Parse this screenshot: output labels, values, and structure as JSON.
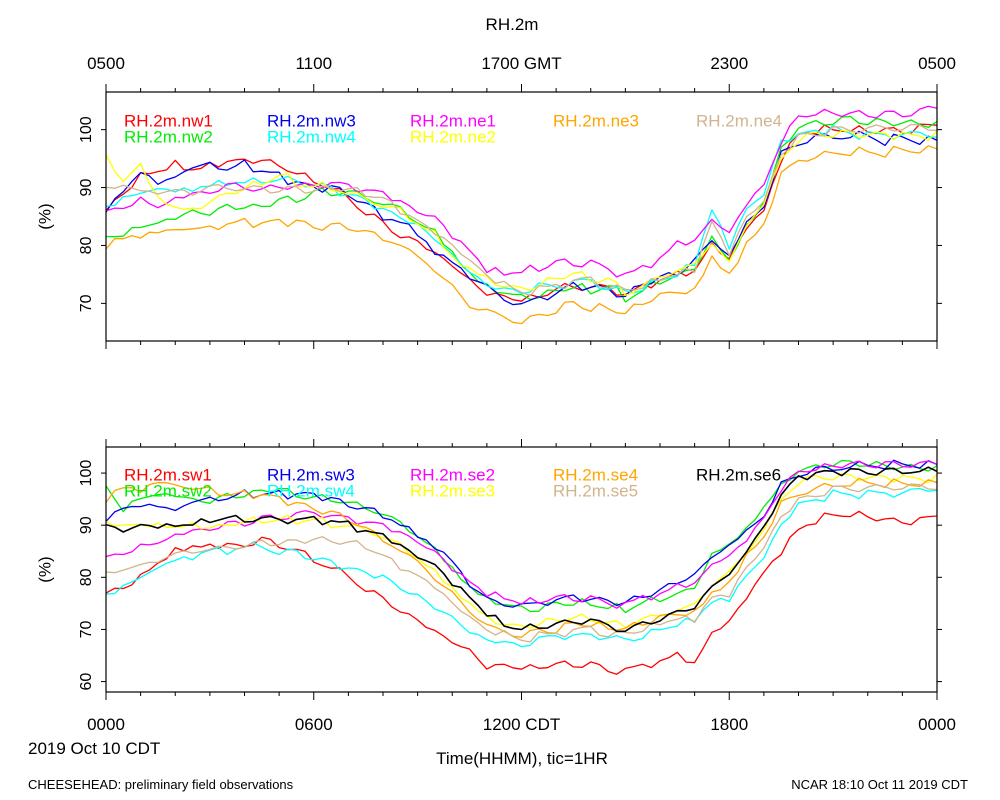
{
  "title": "RH.2m",
  "top_axis": {
    "ticks": [
      "0500",
      "1100",
      "1700 GMT",
      "2300",
      "0500"
    ],
    "hours": [
      0,
      6,
      12,
      18,
      24
    ]
  },
  "bottom_axis": {
    "ticks": [
      "0000",
      "0600",
      "1200 CDT",
      "1800",
      "0000"
    ],
    "hours": [
      0,
      6,
      12,
      18,
      24
    ]
  },
  "date_label": "2019 Oct 10 CDT",
  "xlabel": "Time(HHMM), tic=1HR",
  "footer_left": "CHEESEHEAD: preliminary field observations",
  "footer_right": "NCAR 18:10 Oct 11 2019 CDT",
  "chart_data": [
    {
      "type": "line",
      "panel": "top",
      "ylabel": "(%)",
      "xlim": [
        0,
        24
      ],
      "ylim": [
        63.5,
        106.5
      ],
      "yticks": [
        70,
        80,
        90,
        100
      ],
      "x_hours": [
        0,
        0.5,
        1,
        1.5,
        2,
        2.5,
        3,
        3.5,
        4,
        4.5,
        5,
        5.5,
        6,
        6.5,
        7,
        7.5,
        8,
        8.5,
        9,
        9.5,
        10,
        10.5,
        11,
        11.5,
        12,
        12.5,
        13,
        13.5,
        14,
        14.5,
        15,
        15.5,
        16,
        16.5,
        17,
        17.5,
        18,
        18.5,
        19,
        19.5,
        20,
        20.5,
        21,
        21.5,
        22,
        22.5,
        23,
        23.5,
        24
      ],
      "series": [
        {
          "name": "RH.2m.nw1",
          "color": "#ff0000",
          "values": [
            86,
            89,
            92,
            93,
            94,
            93,
            94,
            94,
            95,
            94,
            94,
            92,
            91,
            90,
            88,
            86,
            84,
            82,
            81,
            79,
            77,
            74,
            72,
            71,
            70.5,
            71,
            72,
            73,
            72,
            73,
            71,
            73,
            74,
            75,
            76,
            80,
            78,
            83,
            86,
            95,
            99,
            100,
            100,
            100,
            100,
            100,
            100,
            100.5,
            101
          ]
        },
        {
          "name": "RH.2m.nw2",
          "color": "#00ee00",
          "values": [
            81,
            82,
            83,
            84,
            85,
            86,
            86,
            87,
            87,
            87,
            88,
            88,
            89,
            89,
            89,
            88,
            87,
            86,
            84,
            82,
            79,
            75,
            73,
            72,
            71,
            71.5,
            72,
            73,
            72,
            73,
            71,
            72,
            74,
            75,
            76,
            82,
            77,
            84,
            87,
            97,
            100,
            101,
            101,
            101.5,
            101,
            101,
            101,
            101,
            101
          ]
        },
        {
          "name": "RH.2m.nw3",
          "color": "#0000ee",
          "values": [
            86,
            89,
            93,
            90,
            92,
            93,
            94,
            93,
            94,
            93,
            92,
            91,
            90,
            90,
            89,
            87,
            85,
            84,
            82,
            79,
            77,
            75,
            73,
            71,
            70,
            71,
            72,
            73,
            73,
            72,
            71,
            73,
            74,
            75,
            77,
            81,
            78,
            84,
            87,
            96,
            98,
            99,
            99,
            99,
            99,
            98,
            98.5,
            98,
            98
          ]
        },
        {
          "name": "RH.2m.nw4",
          "color": "#00ffff",
          "values": [
            87,
            88,
            89,
            90,
            89,
            90,
            90,
            91,
            91,
            91,
            92,
            91,
            91,
            90,
            89,
            88,
            86,
            85,
            83,
            81,
            78,
            75,
            73,
            72,
            72,
            73,
            73,
            74,
            74,
            73,
            72,
            73,
            74,
            75,
            77,
            86,
            80,
            86,
            89,
            98,
            99,
            100,
            100,
            99.5,
            99,
            99,
            99,
            99,
            99
          ]
        },
        {
          "name": "RH.2m.ne1",
          "color": "#ff00ff",
          "values": [
            86,
            87,
            88,
            87,
            88,
            89,
            89,
            90,
            90,
            89,
            90,
            90,
            90,
            91,
            90,
            90,
            89,
            88,
            86,
            85,
            82,
            79,
            76,
            75,
            75.5,
            76,
            77,
            77,
            77,
            76,
            75,
            76,
            78,
            80,
            81,
            84,
            82,
            87,
            90,
            98,
            102,
            103,
            103,
            103,
            103,
            103,
            103,
            103.5,
            104
          ]
        },
        {
          "name": "RH.2m.ne2",
          "color": "#ffff00",
          "values": [
            95,
            91,
            94,
            88,
            87,
            86,
            88,
            89,
            90,
            91,
            92,
            91,
            90,
            90,
            89,
            88,
            87,
            86,
            84,
            82,
            78,
            76,
            74,
            73,
            72,
            73,
            74,
            75,
            74,
            74,
            72,
            73,
            75,
            76,
            77,
            81,
            77,
            84,
            87,
            95,
            98,
            99,
            99,
            99,
            99,
            99,
            99,
            99,
            99
          ]
        },
        {
          "name": "RH.2m.ne3",
          "color": "#ffa500",
          "values": [
            80,
            81,
            82,
            82,
            83,
            83,
            83,
            84,
            84,
            84,
            84,
            84,
            83,
            83,
            83,
            82,
            81,
            80,
            78,
            76,
            73,
            70,
            69,
            68,
            67,
            68,
            69,
            70,
            69,
            69,
            68,
            70,
            71,
            72,
            72,
            78,
            75,
            80,
            84,
            92,
            95,
            95,
            96,
            96,
            96,
            96,
            96.5,
            96.5,
            97
          ]
        },
        {
          "name": "RH.2m.ne4",
          "color": "#d2b48c",
          "values": [
            90,
            90,
            89,
            89,
            89,
            89,
            90,
            90,
            90,
            90,
            90,
            90,
            90,
            90,
            90,
            89,
            88,
            86,
            84,
            82,
            80,
            77,
            75,
            73,
            72,
            72.5,
            73,
            74,
            74,
            73,
            72,
            73,
            74,
            75,
            76,
            84,
            79,
            85,
            88,
            96,
            99,
            99.5,
            100,
            100,
            100,
            100,
            100,
            100,
            100
          ]
        }
      ]
    },
    {
      "type": "line",
      "panel": "bottom",
      "ylabel": "(%)",
      "xlim": [
        0,
        24
      ],
      "ylim": [
        58,
        105
      ],
      "yticks": [
        60,
        70,
        80,
        90,
        100
      ],
      "x_hours": [
        0,
        0.5,
        1,
        1.5,
        2,
        2.5,
        3,
        3.5,
        4,
        4.5,
        5,
        5.5,
        6,
        6.5,
        7,
        7.5,
        8,
        8.5,
        9,
        9.5,
        10,
        10.5,
        11,
        11.5,
        12,
        12.5,
        13,
        13.5,
        14,
        14.5,
        15,
        15.5,
        16,
        16.5,
        17,
        17.5,
        18,
        18.5,
        19,
        19.5,
        20,
        20.5,
        21,
        21.5,
        22,
        22.5,
        23,
        23.5,
        24
      ],
      "series": [
        {
          "name": "RH.2m.sw1",
          "color": "#ff0000",
          "values": [
            77,
            78,
            80,
            83,
            85,
            86,
            86,
            86,
            86,
            87,
            86,
            85,
            83,
            82,
            80,
            78,
            76,
            74,
            72,
            70,
            68,
            66,
            63,
            63,
            62.5,
            62.5,
            63,
            63,
            63,
            62,
            62,
            63,
            64,
            65,
            64,
            69,
            72,
            76,
            81,
            85,
            89,
            91,
            92,
            92,
            92,
            91,
            91,
            91,
            92
          ]
        },
        {
          "name": "RH.2m.sw2",
          "color": "#00ee00",
          "values": [
            97,
            93,
            95,
            96,
            96,
            95,
            95,
            96,
            96,
            97,
            97,
            96,
            95,
            95,
            94,
            93,
            92,
            90,
            88,
            85,
            82,
            78,
            76,
            75,
            74,
            74,
            75,
            75,
            75,
            74,
            74,
            75,
            76,
            77,
            78,
            85,
            86,
            90,
            93,
            98,
            100,
            101,
            101.5,
            101.5,
            101.5,
            101,
            101,
            101,
            101
          ]
        },
        {
          "name": "RH.2m.sw3",
          "color": "#0000ee",
          "values": [
            91,
            93,
            94,
            93,
            93,
            94,
            95,
            95,
            96,
            96,
            96,
            96,
            96,
            95,
            94,
            93,
            92,
            90,
            88,
            86,
            83,
            79,
            76,
            75,
            75,
            75,
            76,
            76,
            76,
            75,
            75,
            76,
            77,
            79,
            80,
            84,
            86,
            89,
            92,
            98,
            100,
            101,
            101,
            101.5,
            101.5,
            101.5,
            101.5,
            101.5,
            101.5
          ]
        },
        {
          "name": "RH.2m.sw4",
          "color": "#00ffff",
          "values": [
            77,
            78,
            80,
            82,
            83,
            84,
            85,
            85,
            86,
            86,
            85,
            85,
            84,
            83,
            82,
            81,
            80,
            78,
            76,
            74,
            72,
            69,
            68,
            67,
            67,
            68,
            69,
            69,
            69,
            69,
            68,
            69,
            70,
            71,
            72,
            75,
            76,
            80,
            84,
            90,
            94,
            95,
            96,
            96,
            96,
            96,
            96,
            96.5,
            97
          ]
        },
        {
          "name": "RH.2m.se2",
          "color": "#ff00ff",
          "values": [
            84,
            85,
            86,
            87,
            88,
            89,
            89,
            90,
            90,
            91,
            91,
            92,
            92,
            92,
            91,
            91,
            90,
            89,
            87,
            85,
            82,
            79,
            77,
            76,
            75,
            75.5,
            76,
            76,
            76,
            75,
            75,
            76,
            77,
            78,
            79,
            82,
            84,
            87,
            91,
            97,
            100,
            101,
            101.5,
            102,
            102,
            102,
            102,
            102,
            102
          ]
        },
        {
          "name": "RH.2m.se3",
          "color": "#ffff00",
          "values": [
            90,
            90,
            90,
            90,
            90,
            90,
            90,
            90,
            91,
            91,
            91,
            91,
            91,
            90,
            90,
            89,
            88,
            86,
            84,
            81,
            78,
            75,
            72,
            71,
            70,
            71,
            71.5,
            72,
            72,
            71,
            71,
            72,
            73,
            74,
            75,
            79,
            81,
            85,
            89,
            95,
            98,
            99,
            99,
            99,
            99,
            99,
            99,
            99,
            99
          ]
        },
        {
          "name": "RH.2m.se4",
          "color": "#ffa500",
          "values": [
            95,
            97,
            97,
            98,
            98,
            97,
            97,
            96,
            96,
            96,
            95,
            94,
            93,
            92,
            91,
            89,
            87,
            85,
            83,
            80,
            77,
            74,
            71,
            70,
            69,
            70,
            70,
            71,
            71,
            70,
            70,
            71,
            72,
            73,
            73,
            77,
            79,
            84,
            88,
            94,
            96,
            97,
            97.5,
            98,
            98,
            98,
            98,
            98,
            98.5
          ]
        },
        {
          "name": "RH.2m.se5",
          "color": "#d2b48c",
          "values": [
            81,
            81,
            82,
            83,
            84,
            85,
            85,
            86,
            86,
            87,
            87,
            87,
            88,
            87,
            87,
            86,
            84,
            82,
            80,
            78,
            75,
            72,
            70,
            69,
            68,
            69,
            69,
            70,
            70,
            69,
            69,
            70,
            71,
            72,
            72,
            76,
            77,
            82,
            86,
            92,
            95,
            96,
            97,
            97,
            97,
            97,
            97,
            97,
            97
          ]
        },
        {
          "name": "RH.2m.se6",
          "color": "#000000",
          "values": [
            90,
            89.5,
            90,
            90,
            90,
            90,
            91,
            91,
            91,
            91,
            91,
            91,
            91,
            91,
            90,
            89,
            88,
            86,
            84,
            82,
            79,
            76,
            73,
            71,
            70,
            71,
            71,
            72,
            72,
            71,
            70,
            71,
            72,
            73,
            74,
            78,
            80,
            85,
            89,
            96,
            99,
            100,
            100.5,
            100.5,
            100.5,
            100.5,
            100.5,
            100.5,
            100.5
          ]
        }
      ]
    }
  ]
}
